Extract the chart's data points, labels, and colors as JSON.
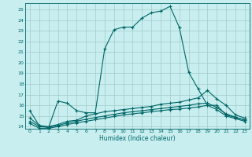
{
  "title": "",
  "xlabel": "Humidex (Indice chaleur)",
  "bg_color": "#c8eef0",
  "grid_color": "#a0ccc8",
  "line_color": "#006666",
  "xlim": [
    -0.5,
    23.5
  ],
  "ylim": [
    13.8,
    25.6
  ],
  "xticks": [
    0,
    1,
    2,
    3,
    4,
    5,
    6,
    7,
    8,
    9,
    10,
    11,
    12,
    13,
    14,
    15,
    16,
    17,
    18,
    19,
    20,
    21,
    22,
    23
  ],
  "yticks": [
    14,
    15,
    16,
    17,
    18,
    19,
    20,
    21,
    22,
    23,
    24,
    25
  ],
  "line1_x": [
    0,
    1,
    2,
    3,
    4,
    5,
    6,
    7,
    8,
    9,
    10,
    11,
    12,
    13,
    14,
    15,
    16,
    17,
    18,
    19,
    20,
    21,
    22,
    23
  ],
  "line1_y": [
    15.5,
    14.1,
    13.9,
    16.4,
    16.2,
    15.5,
    15.3,
    15.3,
    21.3,
    23.1,
    23.35,
    23.35,
    24.2,
    24.7,
    24.85,
    25.3,
    23.3,
    19.1,
    17.55,
    16.0,
    16.0,
    15.1,
    14.85,
    14.65
  ],
  "line2_x": [
    0,
    1,
    2,
    3,
    4,
    5,
    6,
    7,
    8,
    9,
    10,
    11,
    12,
    13,
    14,
    15,
    16,
    17,
    18,
    19,
    20,
    21,
    22,
    23
  ],
  "line2_y": [
    14.8,
    14.1,
    14.0,
    14.2,
    14.5,
    14.6,
    15.0,
    15.2,
    15.4,
    15.5,
    15.6,
    15.7,
    15.8,
    15.9,
    16.1,
    16.2,
    16.3,
    16.5,
    16.7,
    17.4,
    16.6,
    16.0,
    15.1,
    14.8
  ],
  "line3_x": [
    0,
    1,
    2,
    3,
    4,
    5,
    6,
    7,
    8,
    9,
    10,
    11,
    12,
    13,
    14,
    15,
    16,
    17,
    18,
    19,
    20,
    21,
    22,
    23
  ],
  "line3_y": [
    14.5,
    14.0,
    13.95,
    14.1,
    14.35,
    14.5,
    14.7,
    14.85,
    15.0,
    15.15,
    15.3,
    15.4,
    15.5,
    15.6,
    15.7,
    15.8,
    15.9,
    16.0,
    16.15,
    16.2,
    15.8,
    15.2,
    14.9,
    14.6
  ],
  "line4_x": [
    0,
    1,
    2,
    3,
    4,
    5,
    6,
    7,
    8,
    9,
    10,
    11,
    12,
    13,
    14,
    15,
    16,
    17,
    18,
    19,
    20,
    21,
    22,
    23
  ],
  "line4_y": [
    14.3,
    13.85,
    13.85,
    14.0,
    14.2,
    14.35,
    14.5,
    14.65,
    14.8,
    14.95,
    15.1,
    15.2,
    15.3,
    15.4,
    15.5,
    15.6,
    15.65,
    15.75,
    15.85,
    16.0,
    15.6,
    15.0,
    14.75,
    14.5
  ]
}
